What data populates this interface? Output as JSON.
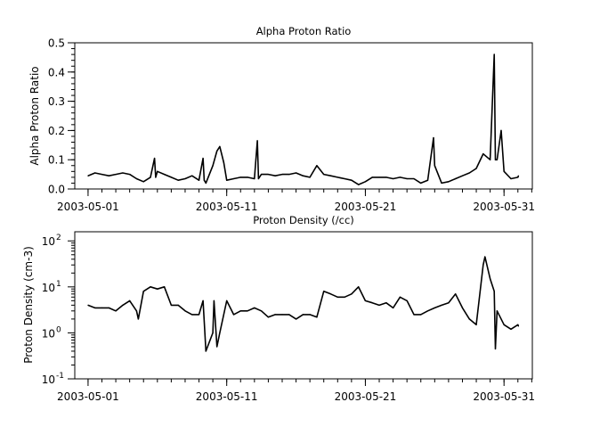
{
  "chart_data": [
    {
      "type": "line",
      "title": "Alpha Proton Ratio",
      "xlabel": "",
      "ylabel": "Alpha Proton Ratio",
      "xlim": [
        "2003-04-30T01:00",
        "2003-06-02T01:00"
      ],
      "ylim": [
        0,
        0.5
      ],
      "yscale": "linear",
      "yticks": [
        "0.0",
        "0.1",
        "0.2",
        "0.3",
        "0.4",
        "0.5"
      ],
      "xticks": [
        "2003-05-01",
        "2003-05-11",
        "2003-05-21",
        "2003-05-31"
      ],
      "grid": false,
      "color": "#000000",
      "series": [
        {
          "points": [
            [
              "2003-05-01T00:00",
              0.045
            ],
            [
              "2003-05-01T12:00",
              0.055
            ],
            [
              "2003-05-02T00:00",
              0.05
            ],
            [
              "2003-05-02T12:00",
              0.045
            ],
            [
              "2003-05-03T00:00",
              0.05
            ],
            [
              "2003-05-03T12:00",
              0.055
            ],
            [
              "2003-05-04T00:00",
              0.05
            ],
            [
              "2003-05-04T12:00",
              0.035
            ],
            [
              "2003-05-05T00:00",
              0.025
            ],
            [
              "2003-05-05T12:00",
              0.04
            ],
            [
              "2003-05-05T19:00",
              0.105
            ],
            [
              "2003-05-05T21:00",
              0.04
            ],
            [
              "2003-05-06T00:00",
              0.06
            ],
            [
              "2003-05-06T12:00",
              0.05
            ],
            [
              "2003-05-07T00:00",
              0.04
            ],
            [
              "2003-05-07T12:00",
              0.03
            ],
            [
              "2003-05-08T00:00",
              0.035
            ],
            [
              "2003-05-08T12:00",
              0.045
            ],
            [
              "2003-05-09T00:00",
              0.03
            ],
            [
              "2003-05-09T07:00",
              0.105
            ],
            [
              "2003-05-09T09:00",
              0.03
            ],
            [
              "2003-05-09T12:00",
              0.02
            ],
            [
              "2003-05-10T00:00",
              0.08
            ],
            [
              "2003-05-10T07:00",
              0.13
            ],
            [
              "2003-05-10T12:00",
              0.145
            ],
            [
              "2003-05-10T19:00",
              0.09
            ],
            [
              "2003-05-11T00:00",
              0.03
            ],
            [
              "2003-05-11T12:00",
              0.035
            ],
            [
              "2003-05-12T00:00",
              0.04
            ],
            [
              "2003-05-12T12:00",
              0.04
            ],
            [
              "2003-05-13T00:00",
              0.035
            ],
            [
              "2003-05-13T05:00",
              0.165
            ],
            [
              "2003-05-13T07:00",
              0.035
            ],
            [
              "2003-05-13T12:00",
              0.05
            ],
            [
              "2003-05-14T00:00",
              0.05
            ],
            [
              "2003-05-14T12:00",
              0.045
            ],
            [
              "2003-05-15T00:00",
              0.05
            ],
            [
              "2003-05-15T12:00",
              0.05
            ],
            [
              "2003-05-16T00:00",
              0.055
            ],
            [
              "2003-05-16T12:00",
              0.045
            ],
            [
              "2003-05-17T00:00",
              0.04
            ],
            [
              "2003-05-17T12:00",
              0.08
            ],
            [
              "2003-05-18T00:00",
              0.05
            ],
            [
              "2003-05-18T12:00",
              0.045
            ],
            [
              "2003-05-19T00:00",
              0.04
            ],
            [
              "2003-05-19T12:00",
              0.035
            ],
            [
              "2003-05-20T00:00",
              0.03
            ],
            [
              "2003-05-20T12:00",
              0.015
            ],
            [
              "2003-05-21T00:00",
              0.025
            ],
            [
              "2003-05-21T12:00",
              0.04
            ],
            [
              "2003-05-22T00:00",
              0.04
            ],
            [
              "2003-05-22T12:00",
              0.04
            ],
            [
              "2003-05-23T00:00",
              0.035
            ],
            [
              "2003-05-23T12:00",
              0.04
            ],
            [
              "2003-05-24T00:00",
              0.035
            ],
            [
              "2003-05-24T12:00",
              0.035
            ],
            [
              "2003-05-25T00:00",
              0.02
            ],
            [
              "2003-05-25T12:00",
              0.03
            ],
            [
              "2003-05-25T22:00",
              0.175
            ],
            [
              "2003-05-26T00:00",
              0.08
            ],
            [
              "2003-05-26T12:00",
              0.02
            ],
            [
              "2003-05-27T00:00",
              0.025
            ],
            [
              "2003-05-27T12:00",
              0.035
            ],
            [
              "2003-05-28T00:00",
              0.045
            ],
            [
              "2003-05-28T12:00",
              0.055
            ],
            [
              "2003-05-29T00:00",
              0.07
            ],
            [
              "2003-05-29T12:00",
              0.12
            ],
            [
              "2003-05-30T00:00",
              0.1
            ],
            [
              "2003-05-30T07:00",
              0.46
            ],
            [
              "2003-05-30T09:00",
              0.1
            ],
            [
              "2003-05-30T12:00",
              0.1
            ],
            [
              "2003-05-30T19:00",
              0.2
            ],
            [
              "2003-05-31T00:00",
              0.06
            ],
            [
              "2003-05-31T12:00",
              0.035
            ],
            [
              "2003-06-01T00:00",
              0.04
            ],
            [
              "2003-06-01T01:00",
              0.045
            ]
          ]
        }
      ]
    },
    {
      "type": "line",
      "title": "Proton Density (/cc)",
      "xlabel": "",
      "ylabel": "Proton Density (cm-3)",
      "xlim": [
        "2003-04-30T01:00",
        "2003-06-02T01:00"
      ],
      "ylim": [
        0.1,
        158
      ],
      "yscale": "log",
      "yticks": [
        {
          "base": "10",
          "exp": "-1",
          "value": 0.1
        },
        {
          "base": "10",
          "exp": "0",
          "value": 1
        },
        {
          "base": "10",
          "exp": "1",
          "value": 10
        },
        {
          "base": "10",
          "exp": "2",
          "value": 100
        }
      ],
      "xticks": [
        "2003-05-01",
        "2003-05-11",
        "2003-05-21",
        "2003-05-31"
      ],
      "grid": false,
      "color": "#000000",
      "series": [
        {
          "points": [
            [
              "2003-05-01T00:00",
              4
            ],
            [
              "2003-05-01T12:00",
              3.5
            ],
            [
              "2003-05-02T00:00",
              3.5
            ],
            [
              "2003-05-02T12:00",
              3.5
            ],
            [
              "2003-05-03T00:00",
              3
            ],
            [
              "2003-05-03T12:00",
              4
            ],
            [
              "2003-05-04T00:00",
              5
            ],
            [
              "2003-05-04T12:00",
              3
            ],
            [
              "2003-05-04T15:00",
              2
            ],
            [
              "2003-05-05T00:00",
              8
            ],
            [
              "2003-05-05T12:00",
              10
            ],
            [
              "2003-05-06T00:00",
              9
            ],
            [
              "2003-05-06T12:00",
              10
            ],
            [
              "2003-05-07T00:00",
              4
            ],
            [
              "2003-05-07T12:00",
              4
            ],
            [
              "2003-05-08T00:00",
              3
            ],
            [
              "2003-05-08T12:00",
              2.5
            ],
            [
              "2003-05-09T00:00",
              2.5
            ],
            [
              "2003-05-09T07:00",
              5
            ],
            [
              "2003-05-09T12:00",
              0.4
            ],
            [
              "2003-05-10T00:00",
              1
            ],
            [
              "2003-05-10T02:00",
              5
            ],
            [
              "2003-05-10T07:00",
              0.5
            ],
            [
              "2003-05-10T12:00",
              1
            ],
            [
              "2003-05-11T00:00",
              5
            ],
            [
              "2003-05-11T12:00",
              2.5
            ],
            [
              "2003-05-12T00:00",
              3
            ],
            [
              "2003-05-12T12:00",
              3
            ],
            [
              "2003-05-13T00:00",
              3.5
            ],
            [
              "2003-05-13T12:00",
              3
            ],
            [
              "2003-05-14T00:00",
              2.2
            ],
            [
              "2003-05-14T12:00",
              2.5
            ],
            [
              "2003-05-15T00:00",
              2.5
            ],
            [
              "2003-05-15T12:00",
              2.5
            ],
            [
              "2003-05-16T00:00",
              2
            ],
            [
              "2003-05-16T12:00",
              2.5
            ],
            [
              "2003-05-17T00:00",
              2.5
            ],
            [
              "2003-05-17T12:00",
              2.2
            ],
            [
              "2003-05-18T00:00",
              8
            ],
            [
              "2003-05-18T12:00",
              7
            ],
            [
              "2003-05-19T00:00",
              6
            ],
            [
              "2003-05-19T12:00",
              6
            ],
            [
              "2003-05-20T00:00",
              7
            ],
            [
              "2003-05-20T12:00",
              10
            ],
            [
              "2003-05-21T00:00",
              5
            ],
            [
              "2003-05-21T12:00",
              4.5
            ],
            [
              "2003-05-22T00:00",
              4
            ],
            [
              "2003-05-22T12:00",
              4.5
            ],
            [
              "2003-05-23T00:00",
              3.5
            ],
            [
              "2003-05-23T12:00",
              6
            ],
            [
              "2003-05-24T00:00",
              5
            ],
            [
              "2003-05-24T12:00",
              2.5
            ],
            [
              "2003-05-25T00:00",
              2.5
            ],
            [
              "2003-05-25T12:00",
              3
            ],
            [
              "2003-05-26T00:00",
              3.5
            ],
            [
              "2003-05-26T12:00",
              4
            ],
            [
              "2003-05-27T00:00",
              4.5
            ],
            [
              "2003-05-27T12:00",
              7
            ],
            [
              "2003-05-28T00:00",
              3.5
            ],
            [
              "2003-05-28T12:00",
              2
            ],
            [
              "2003-05-29T00:00",
              1.5
            ],
            [
              "2003-05-29T12:00",
              30
            ],
            [
              "2003-05-29T15:00",
              45
            ],
            [
              "2003-05-30T00:00",
              15
            ],
            [
              "2003-05-30T07:00",
              8
            ],
            [
              "2003-05-30T09:00",
              0.45
            ],
            [
              "2003-05-30T12:00",
              3
            ],
            [
              "2003-05-31T00:00",
              1.5
            ],
            [
              "2003-05-31T12:00",
              1.2
            ],
            [
              "2003-06-01T00:00",
              1.5
            ],
            [
              "2003-06-01T01:00",
              1.4
            ]
          ]
        }
      ]
    }
  ]
}
